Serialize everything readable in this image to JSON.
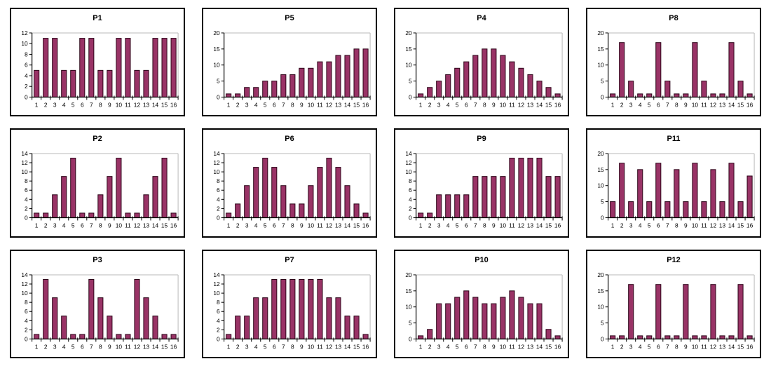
{
  "page": {
    "background_color": "#ffffff",
    "grid_rows": 3,
    "grid_cols": 4
  },
  "chart_style": {
    "bar_fill": "#993366",
    "bar_stroke": "#2b0417",
    "axis_color": "#000000",
    "plot_border_color": "#b9b9b9",
    "panel_border_color": "#000000",
    "title_color": "#000000"
  },
  "chart_data": [
    {
      "type": "bar",
      "title": "P1",
      "categories": [
        "1",
        "2",
        "3",
        "4",
        "5",
        "6",
        "7",
        "8",
        "9",
        "10",
        "11",
        "12",
        "13",
        "14",
        "15",
        "16"
      ],
      "values": [
        5,
        11,
        11,
        5,
        5,
        11,
        11,
        5,
        5,
        11,
        11,
        5,
        5,
        11,
        11,
        11
      ],
      "ylim": [
        0,
        12
      ],
      "ystep": 2,
      "xlabel": "",
      "ylabel": "",
      "grid": "top-line-only",
      "legend": "none"
    },
    {
      "type": "bar",
      "title": "P5",
      "categories": [
        "1",
        "2",
        "3",
        "4",
        "5",
        "6",
        "7",
        "8",
        "9",
        "10",
        "11",
        "12",
        "13",
        "14",
        "15",
        "16"
      ],
      "values": [
        1,
        1,
        3,
        3,
        5,
        5,
        7,
        7,
        9,
        9,
        11,
        11,
        13,
        13,
        15,
        15
      ],
      "ylim": [
        0,
        20
      ],
      "ystep": 5,
      "xlabel": "",
      "ylabel": "",
      "grid": "top-line-only",
      "legend": "none"
    },
    {
      "type": "bar",
      "title": "P4",
      "categories": [
        "1",
        "2",
        "3",
        "4",
        "5",
        "6",
        "7",
        "8",
        "9",
        "10",
        "11",
        "12",
        "13",
        "14",
        "15",
        "16"
      ],
      "values": [
        1,
        3,
        5,
        7,
        9,
        11,
        13,
        15,
        15,
        13,
        11,
        9,
        7,
        5,
        3,
        1
      ],
      "ylim": [
        0,
        20
      ],
      "ystep": 5,
      "xlabel": "",
      "ylabel": "",
      "grid": "top-line-only",
      "legend": "none"
    },
    {
      "type": "bar",
      "title": "P8",
      "categories": [
        "1",
        "2",
        "3",
        "4",
        "5",
        "6",
        "7",
        "8",
        "9",
        "10",
        "11",
        "12",
        "13",
        "14",
        "15",
        "16"
      ],
      "values": [
        1,
        17,
        5,
        1,
        1,
        17,
        5,
        1,
        1,
        17,
        5,
        1,
        1,
        17,
        5,
        1
      ],
      "ylim": [
        0,
        20
      ],
      "ystep": 5,
      "xlabel": "",
      "ylabel": "",
      "grid": "top-line-only",
      "legend": "none"
    },
    {
      "type": "bar",
      "title": "P2",
      "categories": [
        "1",
        "2",
        "3",
        "4",
        "5",
        "6",
        "7",
        "8",
        "9",
        "10",
        "11",
        "12",
        "13",
        "14",
        "15",
        "16"
      ],
      "values": [
        1,
        1,
        5,
        9,
        13,
        1,
        1,
        5,
        9,
        13,
        1,
        1,
        5,
        9,
        13,
        1
      ],
      "ylim": [
        0,
        14
      ],
      "ystep": 2,
      "xlabel": "",
      "ylabel": "",
      "grid": "top-line-only",
      "legend": "none"
    },
    {
      "type": "bar",
      "title": "P6",
      "categories": [
        "1",
        "2",
        "3",
        "4",
        "5",
        "6",
        "7",
        "8",
        "9",
        "10",
        "11",
        "12",
        "13",
        "14",
        "15",
        "16"
      ],
      "values": [
        1,
        3,
        7,
        11,
        13,
        11,
        7,
        3,
        3,
        7,
        11,
        13,
        11,
        7,
        3,
        1
      ],
      "ylim": [
        0,
        14
      ],
      "ystep": 2,
      "xlabel": "",
      "ylabel": "",
      "grid": "top-line-only",
      "legend": "none"
    },
    {
      "type": "bar",
      "title": "P9",
      "categories": [
        "1",
        "2",
        "3",
        "4",
        "5",
        "6",
        "7",
        "8",
        "9",
        "10",
        "11",
        "12",
        "13",
        "14",
        "15",
        "16"
      ],
      "values": [
        1,
        1,
        5,
        5,
        5,
        5,
        9,
        9,
        9,
        9,
        13,
        13,
        13,
        13,
        9,
        9
      ],
      "ylim": [
        0,
        14
      ],
      "ystep": 2,
      "xlabel": "",
      "ylabel": "",
      "grid": "top-line-only",
      "legend": "none"
    },
    {
      "type": "bar",
      "title": "P11",
      "categories": [
        "1",
        "2",
        "3",
        "4",
        "5",
        "6",
        "7",
        "8",
        "9",
        "10",
        "11",
        "12",
        "13",
        "14",
        "15",
        "16"
      ],
      "values": [
        5,
        17,
        5,
        15,
        5,
        17,
        5,
        15,
        5,
        17,
        5,
        15,
        5,
        17,
        5,
        13
      ],
      "ylim": [
        0,
        20
      ],
      "ystep": 5,
      "xlabel": "",
      "ylabel": "",
      "grid": "top-line-only",
      "legend": "none"
    },
    {
      "type": "bar",
      "title": "P3",
      "categories": [
        "1",
        "2",
        "3",
        "4",
        "5",
        "6",
        "7",
        "8",
        "9",
        "10",
        "11",
        "12",
        "13",
        "14",
        "15",
        "16"
      ],
      "values": [
        1,
        13,
        9,
        5,
        1,
        1,
        13,
        9,
        5,
        1,
        1,
        13,
        9,
        5,
        1,
        1
      ],
      "ylim": [
        0,
        14
      ],
      "ystep": 2,
      "xlabel": "",
      "ylabel": "",
      "grid": "top-line-only",
      "legend": "none"
    },
    {
      "type": "bar",
      "title": "P7",
      "categories": [
        "1",
        "2",
        "3",
        "4",
        "5",
        "6",
        "7",
        "8",
        "9",
        "10",
        "11",
        "12",
        "13",
        "14",
        "15",
        "16"
      ],
      "values": [
        1,
        5,
        5,
        9,
        9,
        13,
        13,
        13,
        13,
        13,
        13,
        9,
        9,
        5,
        5,
        1
      ],
      "ylim": [
        0,
        14
      ],
      "ystep": 2,
      "xlabel": "",
      "ylabel": "",
      "grid": "top-line-only",
      "legend": "none"
    },
    {
      "type": "bar",
      "title": "P10",
      "categories": [
        "1",
        "2",
        "3",
        "4",
        "5",
        "6",
        "7",
        "8",
        "9",
        "10",
        "11",
        "12",
        "13",
        "14",
        "15",
        "16"
      ],
      "values": [
        1,
        3,
        11,
        11,
        13,
        15,
        13,
        11,
        11,
        13,
        15,
        13,
        11,
        11,
        3,
        1
      ],
      "ylim": [
        0,
        20
      ],
      "ystep": 5,
      "xlabel": "",
      "ylabel": "",
      "grid": "top-line-only",
      "legend": "none"
    },
    {
      "type": "bar",
      "title": "P12",
      "categories": [
        "1",
        "2",
        "3",
        "4",
        "5",
        "6",
        "7",
        "8",
        "9",
        "10",
        "11",
        "12",
        "13",
        "14",
        "15",
        "16"
      ],
      "values": [
        1,
        1,
        17,
        1,
        1,
        17,
        1,
        1,
        17,
        1,
        1,
        17,
        1,
        1,
        17,
        1
      ],
      "ylim": [
        0,
        20
      ],
      "ystep": 5,
      "xlabel": "",
      "ylabel": "",
      "grid": "top-line-only",
      "legend": "none"
    }
  ]
}
